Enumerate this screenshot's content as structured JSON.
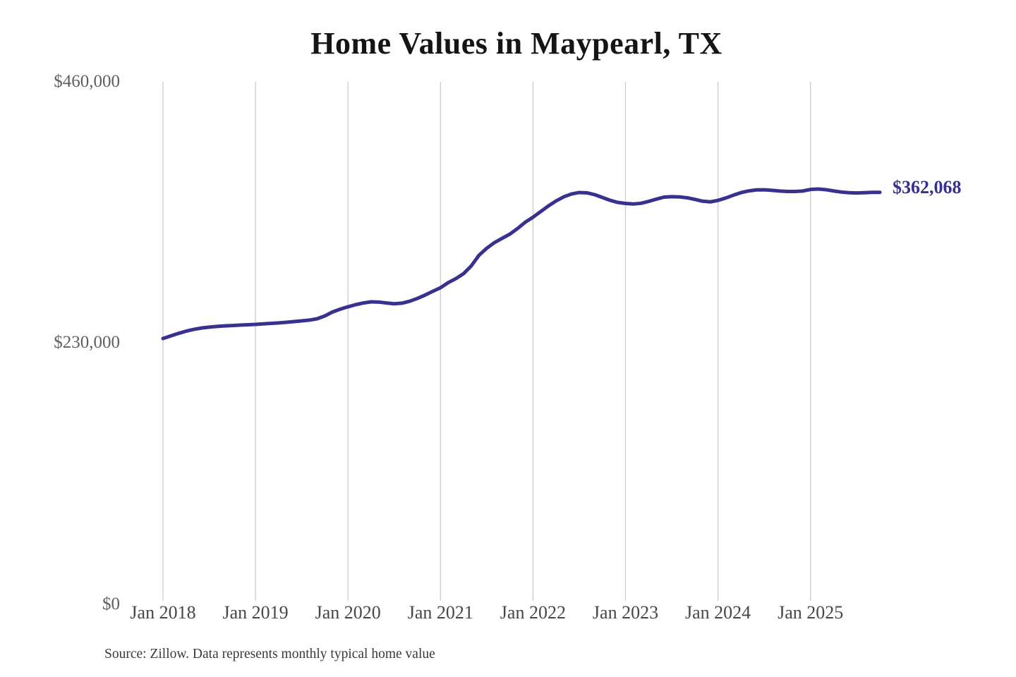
{
  "title": "Home Values in Maypearl, TX",
  "source_note": "Source: Zillow. Data represents monthly typical home value",
  "colors": {
    "line": "#39318f",
    "grid": "#cccccc",
    "y_label_text": "#5f5f61",
    "x_label_text": "#474749",
    "title_text": "#151515",
    "source_text": "#3a3a3a",
    "end_label_text": "#39318f",
    "background": "#ffffff"
  },
  "chart_data": {
    "type": "line",
    "title": "Home Values in Maypearl, TX",
    "xlabel": "",
    "ylabel": "",
    "ylim": [
      0,
      460000
    ],
    "grid": "vertical-only",
    "legend_position": "none",
    "end_label": "$362,068",
    "end_value": 362068,
    "y_ticks": [
      {
        "value": 0,
        "label": "$0"
      },
      {
        "value": 230000,
        "label": "$230,000"
      },
      {
        "value": 460000,
        "label": "$460,000"
      }
    ],
    "x_ticks": [
      "Jan 2018",
      "Jan 2019",
      "Jan 2020",
      "Jan 2021",
      "Jan 2022",
      "Jan 2023",
      "Jan 2024",
      "Jan 2025"
    ],
    "series": [
      {
        "name": "Monthly typical home value",
        "months": [
          "2018-01",
          "2018-02",
          "2018-03",
          "2018-04",
          "2018-05",
          "2018-06",
          "2018-07",
          "2018-08",
          "2018-09",
          "2018-10",
          "2018-11",
          "2018-12",
          "2019-01",
          "2019-02",
          "2019-03",
          "2019-04",
          "2019-05",
          "2019-06",
          "2019-07",
          "2019-08",
          "2019-09",
          "2019-10",
          "2019-11",
          "2019-12",
          "2020-01",
          "2020-02",
          "2020-03",
          "2020-04",
          "2020-05",
          "2020-06",
          "2020-07",
          "2020-08",
          "2020-09",
          "2020-10",
          "2020-11",
          "2020-12",
          "2021-01",
          "2021-02",
          "2021-03",
          "2021-04",
          "2021-05",
          "2021-06",
          "2021-07",
          "2021-08",
          "2021-09",
          "2021-10",
          "2021-11",
          "2021-12",
          "2022-01",
          "2022-02",
          "2022-03",
          "2022-04",
          "2022-05",
          "2022-06",
          "2022-07",
          "2022-08",
          "2022-09",
          "2022-10",
          "2022-11",
          "2022-12",
          "2023-01",
          "2023-02",
          "2023-03",
          "2023-04",
          "2023-05",
          "2023-06",
          "2023-07",
          "2023-08",
          "2023-09",
          "2023-10",
          "2023-11",
          "2023-12",
          "2024-01",
          "2024-02",
          "2024-03",
          "2024-04",
          "2024-05",
          "2024-06",
          "2024-07",
          "2024-08",
          "2024-09",
          "2024-10",
          "2024-11",
          "2024-12",
          "2025-01",
          "2025-02",
          "2025-03",
          "2025-04",
          "2025-05",
          "2025-06",
          "2025-07",
          "2025-08",
          "2025-09",
          "2025-10"
        ],
        "values": [
          232500,
          234800,
          237000,
          239000,
          240600,
          241800,
          242600,
          243200,
          243700,
          244000,
          244400,
          244700,
          245000,
          245500,
          245900,
          246300,
          246900,
          247500,
          248100,
          248800,
          250000,
          252500,
          256000,
          258500,
          260600,
          262500,
          264000,
          265000,
          264800,
          264000,
          263300,
          263800,
          265500,
          268000,
          271000,
          274300,
          277500,
          282000,
          285600,
          290000,
          296900,
          306300,
          312500,
          317500,
          321300,
          325000,
          330000,
          335600,
          340000,
          345000,
          350000,
          354400,
          358100,
          360600,
          361900,
          361600,
          360000,
          357500,
          355000,
          353100,
          352200,
          351700,
          352300,
          354000,
          356000,
          357800,
          358200,
          358000,
          357200,
          355800,
          354200,
          353600,
          354900,
          357000,
          359500,
          361800,
          363300,
          364200,
          364300,
          363800,
          363200,
          362800,
          362800,
          363200,
          364600,
          365000,
          364400,
          363300,
          362300,
          361700,
          361500,
          361700,
          362000,
          362068
        ]
      }
    ]
  }
}
